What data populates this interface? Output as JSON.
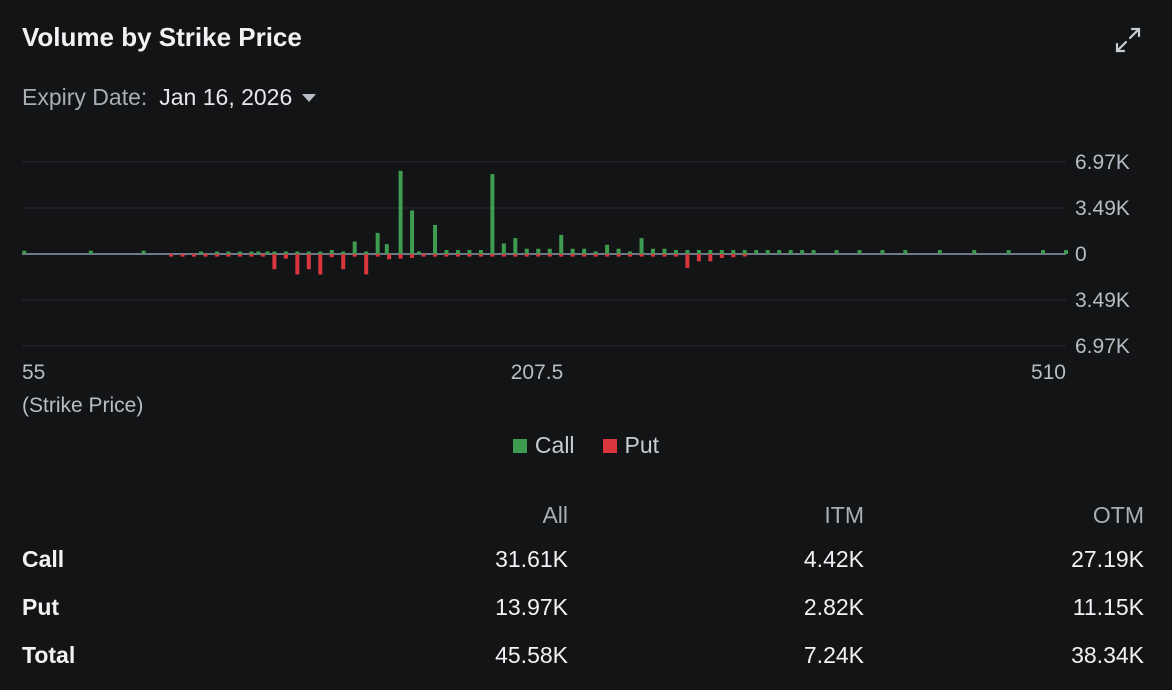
{
  "header": {
    "title": "Volume by Strike Price",
    "expiry_label": "Expiry Date:",
    "expiry_value": "Jan 16, 2026"
  },
  "icons": {
    "expand": "expand-icon",
    "dropdown": "chevron-down-icon"
  },
  "colors": {
    "call": "#3e9b4f",
    "put": "#d9363e",
    "background": "#131416",
    "zero_line": "#8d9ab0"
  },
  "legend": [
    {
      "name": "Call",
      "color": "#3e9b4f"
    },
    {
      "name": "Put",
      "color": "#d9363e"
    }
  ],
  "chart_data": {
    "type": "bar",
    "xlabel": "(Strike Price)",
    "x_tick_labels": [
      "55",
      "207.5",
      "510"
    ],
    "x_range": [
      55,
      510
    ],
    "y_tick_labels": [
      "6.97K",
      "3.49K",
      "0",
      "3.49K",
      "6.97K"
    ],
    "ylim": [
      -6970,
      6970
    ],
    "grid": true,
    "legend_position": "bottom",
    "series": [
      {
        "name": "Call",
        "points": [
          [
            56,
            250
          ],
          [
            85,
            250
          ],
          [
            108,
            250
          ],
          [
            133,
            150
          ],
          [
            140,
            150
          ],
          [
            145,
            150
          ],
          [
            150,
            150
          ],
          [
            155,
            150
          ],
          [
            158,
            150
          ],
          [
            162,
            150
          ],
          [
            165,
            150
          ],
          [
            170,
            150
          ],
          [
            175,
            150
          ],
          [
            180,
            150
          ],
          [
            185,
            150
          ],
          [
            190,
            300
          ],
          [
            195,
            150
          ],
          [
            200,
            950
          ],
          [
            205,
            150
          ],
          [
            210,
            1600
          ],
          [
            214,
            750
          ],
          [
            220,
            6300
          ],
          [
            225,
            3300
          ],
          [
            228,
            150
          ],
          [
            235,
            2200
          ],
          [
            240,
            300
          ],
          [
            245,
            300
          ],
          [
            250,
            300
          ],
          [
            255,
            300
          ],
          [
            260,
            6050
          ],
          [
            265,
            800
          ],
          [
            270,
            1200
          ],
          [
            275,
            400
          ],
          [
            280,
            400
          ],
          [
            285,
            400
          ],
          [
            290,
            1450
          ],
          [
            295,
            400
          ],
          [
            300,
            400
          ],
          [
            305,
            200
          ],
          [
            310,
            700
          ],
          [
            315,
            400
          ],
          [
            320,
            200
          ],
          [
            325,
            1200
          ],
          [
            330,
            400
          ],
          [
            335,
            400
          ],
          [
            340,
            300
          ],
          [
            345,
            300
          ],
          [
            350,
            300
          ],
          [
            355,
            300
          ],
          [
            360,
            300
          ],
          [
            365,
            300
          ],
          [
            370,
            300
          ],
          [
            375,
            300
          ],
          [
            380,
            300
          ],
          [
            385,
            300
          ],
          [
            390,
            300
          ],
          [
            395,
            300
          ],
          [
            400,
            300
          ],
          [
            410,
            300
          ],
          [
            420,
            300
          ],
          [
            430,
            300
          ],
          [
            440,
            300
          ],
          [
            455,
            300
          ],
          [
            470,
            300
          ],
          [
            485,
            300
          ],
          [
            500,
            300
          ],
          [
            510,
            300
          ]
        ]
      },
      {
        "name": "Put",
        "points": [
          [
            120,
            200
          ],
          [
            125,
            200
          ],
          [
            130,
            200
          ],
          [
            135,
            200
          ],
          [
            140,
            200
          ],
          [
            145,
            200
          ],
          [
            150,
            200
          ],
          [
            155,
            200
          ],
          [
            160,
            200
          ],
          [
            165,
            1150
          ],
          [
            170,
            350
          ],
          [
            175,
            1550
          ],
          [
            180,
            1150
          ],
          [
            185,
            1550
          ],
          [
            190,
            250
          ],
          [
            195,
            1150
          ],
          [
            200,
            200
          ],
          [
            205,
            1550
          ],
          [
            210,
            200
          ],
          [
            215,
            400
          ],
          [
            220,
            350
          ],
          [
            225,
            300
          ],
          [
            230,
            200
          ],
          [
            235,
            200
          ],
          [
            240,
            200
          ],
          [
            245,
            200
          ],
          [
            250,
            200
          ],
          [
            255,
            200
          ],
          [
            260,
            200
          ],
          [
            265,
            200
          ],
          [
            270,
            200
          ],
          [
            275,
            200
          ],
          [
            280,
            200
          ],
          [
            285,
            200
          ],
          [
            290,
            200
          ],
          [
            295,
            200
          ],
          [
            300,
            200
          ],
          [
            305,
            200
          ],
          [
            310,
            200
          ],
          [
            315,
            200
          ],
          [
            320,
            200
          ],
          [
            325,
            200
          ],
          [
            330,
            200
          ],
          [
            335,
            200
          ],
          [
            340,
            200
          ],
          [
            345,
            1050
          ],
          [
            350,
            550
          ],
          [
            355,
            550
          ],
          [
            360,
            300
          ],
          [
            365,
            250
          ],
          [
            370,
            150
          ]
        ]
      }
    ]
  },
  "summary": {
    "columns": [
      "",
      "All",
      "ITM",
      "OTM"
    ],
    "rows": [
      {
        "label": "Call",
        "all": "31.61K",
        "itm": "4.42K",
        "otm": "27.19K"
      },
      {
        "label": "Put",
        "all": "13.97K",
        "itm": "2.82K",
        "otm": "11.15K"
      },
      {
        "label": "Total",
        "all": "45.58K",
        "itm": "7.24K",
        "otm": "38.34K"
      }
    ]
  }
}
